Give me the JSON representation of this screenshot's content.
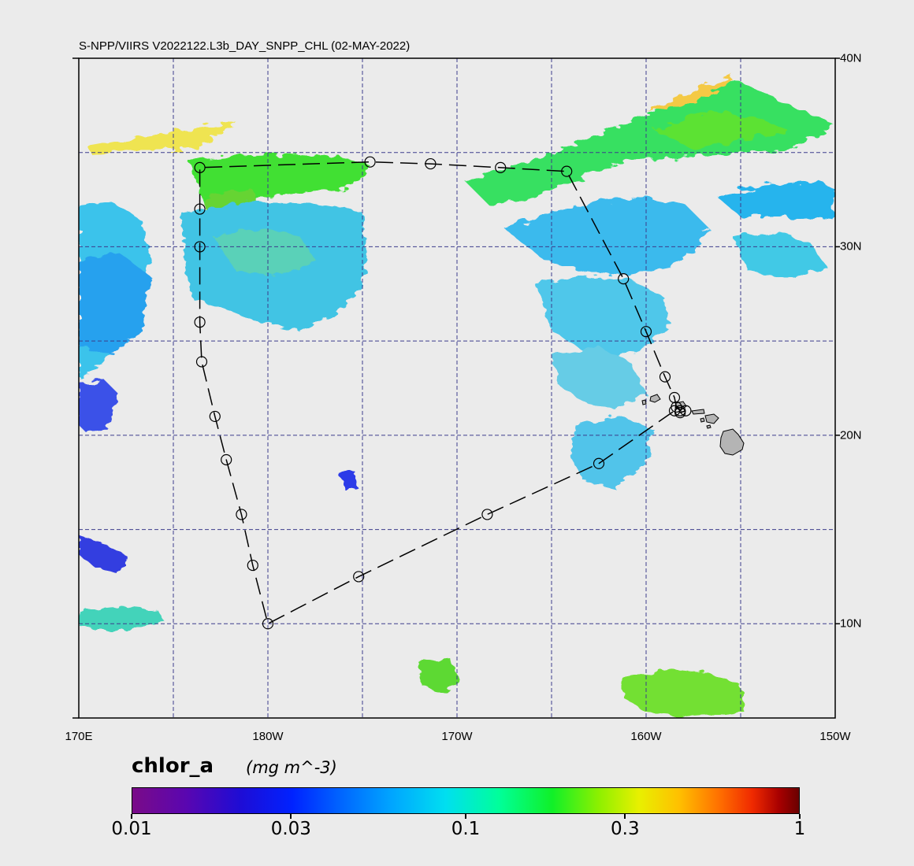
{
  "title": "S-NPP/VIIRS V2022122.L3b_DAY_SNPP_CHL (02-MAY-2022)",
  "map": {
    "lon_range": [
      170,
      210
    ],
    "lat_range": [
      5,
      40
    ],
    "graticule_lon": [
      175,
      180,
      185,
      190,
      195,
      200,
      205
    ],
    "graticule_lat": [
      10,
      15,
      20,
      25,
      30,
      35
    ],
    "lon_labels": [
      {
        "lon": 170,
        "text": "170E"
      },
      {
        "lon": 180,
        "text": "180W"
      },
      {
        "lon": 190,
        "text": "170W"
      },
      {
        "lon": 200,
        "text": "160W"
      },
      {
        "lon": 210,
        "text": "150W"
      }
    ],
    "lat_labels": [
      {
        "lat": 40,
        "text": "40N"
      },
      {
        "lat": 30,
        "text": "30N"
      },
      {
        "lat": 20,
        "text": "20N"
      },
      {
        "lat": 10,
        "text": "10N"
      }
    ],
    "land_color": "#b4b4b4",
    "ocean_color": "#ebebeb",
    "graticule_color": "#3c3c8c"
  },
  "cruise_track": {
    "waypoints": [
      {
        "lon": 201.8,
        "lat": 21.3
      },
      {
        "lon": 201.6,
        "lat": 21.5
      },
      {
        "lon": 201.5,
        "lat": 22.0
      },
      {
        "lon": 201.0,
        "lat": 23.1
      },
      {
        "lon": 200.0,
        "lat": 25.5
      },
      {
        "lon": 198.8,
        "lat": 28.3
      },
      {
        "lon": 195.8,
        "lat": 34.0
      },
      {
        "lon": 192.3,
        "lat": 34.2
      },
      {
        "lon": 188.6,
        "lat": 34.4
      },
      {
        "lon": 185.4,
        "lat": 34.5
      },
      {
        "lon": 176.4,
        "lat": 34.2
      },
      {
        "lon": 176.4,
        "lat": 32.0
      },
      {
        "lon": 176.4,
        "lat": 30.0
      },
      {
        "lon": 176.4,
        "lat": 26.0
      },
      {
        "lon": 176.5,
        "lat": 23.9
      },
      {
        "lon": 177.2,
        "lat": 21.0
      },
      {
        "lon": 177.8,
        "lat": 18.7
      },
      {
        "lon": 178.6,
        "lat": 15.8
      },
      {
        "lon": 179.2,
        "lat": 13.1
      },
      {
        "lon": 180.0,
        "lat": 10.0
      },
      {
        "lon": 184.8,
        "lat": 12.5
      },
      {
        "lon": 191.6,
        "lat": 15.8
      },
      {
        "lon": 197.5,
        "lat": 18.5
      },
      {
        "lon": 201.5,
        "lat": 21.3
      },
      {
        "lon": 201.8,
        "lat": 21.2
      },
      {
        "lon": 202.1,
        "lat": 21.3
      }
    ]
  },
  "colorbar": {
    "variable": "chlor_a",
    "units": "(mg m^-3)",
    "ticks": [
      {
        "value": 0.01,
        "label": "0.01"
      },
      {
        "value": 0.03,
        "label": "0.03"
      },
      {
        "value": 0.1,
        "label": "0.1"
      },
      {
        "value": 0.3,
        "label": "0.3"
      },
      {
        "value": 1,
        "label": "1"
      }
    ],
    "range": [
      0.01,
      1
    ],
    "scale": "log"
  }
}
